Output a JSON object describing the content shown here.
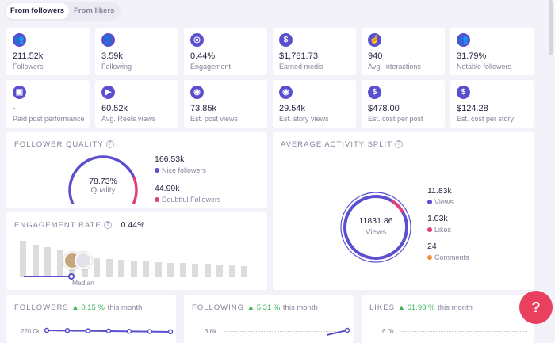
{
  "tabs": [
    {
      "label": "From followers",
      "active": true
    },
    {
      "label": "From likers",
      "active": false
    }
  ],
  "stats": [
    {
      "icon": "followers-icon",
      "glyph": "👥",
      "value": "211.52k",
      "label": "Followers"
    },
    {
      "icon": "following-icon",
      "glyph": "👤",
      "value": "3.59k",
      "label": "Following"
    },
    {
      "icon": "target-icon",
      "glyph": "◎",
      "value": "0.44%",
      "label": "Engagement"
    },
    {
      "icon": "dollar-icon",
      "glyph": "$",
      "value": "$1,781.73",
      "label": "Earned media"
    },
    {
      "icon": "hand-pointer-icon",
      "glyph": "☝",
      "value": "940",
      "label": "Avg. Interactions"
    },
    {
      "icon": "notable-users-icon",
      "glyph": "👥",
      "value": "31.79%",
      "label": "Notable followers"
    },
    {
      "icon": "paid-post-icon",
      "glyph": "▣",
      "value": "-",
      "label": "Paid post performance"
    },
    {
      "icon": "play-icon",
      "glyph": "▶",
      "value": "60.52k",
      "label": "Avg. Reels views"
    },
    {
      "icon": "eye-icon",
      "glyph": "◉",
      "value": "73.85k",
      "label": "Est. post views"
    },
    {
      "icon": "eye-icon",
      "glyph": "◉",
      "value": "29.54k",
      "label": "Est. story views"
    },
    {
      "icon": "dollar-icon",
      "glyph": "$",
      "value": "$478.00",
      "label": "Est. cost per post"
    },
    {
      "icon": "dollar-icon",
      "glyph": "$",
      "value": "$124.28",
      "label": "Est. cost per story"
    }
  ],
  "follower_quality": {
    "title": "FOLLOWER QUALITY",
    "percent": 78.73,
    "center_value": "78.73%",
    "center_label": "Quality",
    "legend": [
      {
        "value": "166.53k",
        "label": "Nice followers",
        "color": "#5a4fcf"
      },
      {
        "value": "44.99k",
        "label": "Doubtful Followers",
        "color": "#e0407a"
      }
    ]
  },
  "engagement_rate": {
    "title": "ENGAGEMENT RATE",
    "value": "0.44%",
    "median_label": "Median",
    "bars": [
      100,
      90,
      82,
      73,
      62,
      57,
      52,
      50,
      48,
      46,
      43,
      41,
      40,
      39,
      37,
      36,
      35,
      33,
      30
    ],
    "marker_index": 4
  },
  "activity_split": {
    "title": "AVERAGE ACTIVITY SPLIT",
    "center_value": "11831.86",
    "center_label": "Views",
    "legend": [
      {
        "value": "11.83k",
        "label": "Views",
        "color": "#5a4fcf",
        "amount": 11831.86
      },
      {
        "value": "1.03k",
        "label": "Likes",
        "color": "#e0407a",
        "amount": 1030
      },
      {
        "value": "24",
        "label": "Comments",
        "color": "#f0913a",
        "amount": 24
      }
    ]
  },
  "bottom": [
    {
      "title": "FOLLOWERS",
      "change": "0.15 %",
      "suffix": "this month",
      "tick": "220.0k"
    },
    {
      "title": "FOLLOWING",
      "change": "5.31 %",
      "suffix": "this month",
      "tick": "3.6k"
    },
    {
      "title": "LIKES",
      "change": "61.93 %",
      "suffix": "this month",
      "tick": "6.0k"
    }
  ],
  "help_button": {
    "icon": "help-chat-icon",
    "glyph": "?"
  },
  "colors": {
    "accent": "#5a4fcf",
    "pink": "#e0407a",
    "orange": "#f0913a",
    "green": "#3cb55a"
  }
}
